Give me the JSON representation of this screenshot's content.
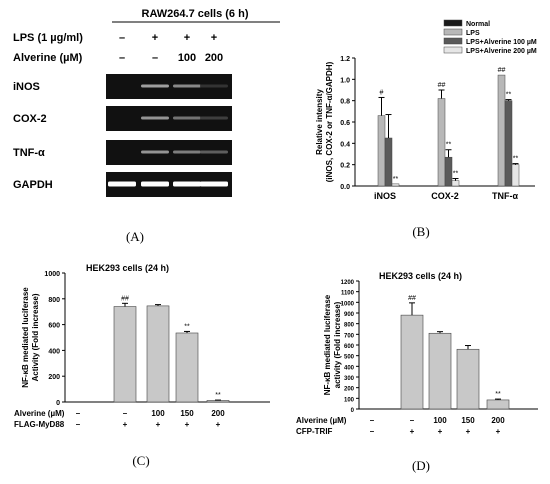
{
  "panels": {
    "A": {
      "letter": "(A)",
      "cell_title": "RAW264.7 cells (6 h)",
      "treatment_rows": [
        {
          "label": "LPS (1 µg/ml)",
          "values": [
            "–",
            "+",
            "+",
            "+"
          ]
        },
        {
          "label": "Alverine (µM)",
          "values": [
            "–",
            "–",
            "100",
            "200"
          ]
        }
      ],
      "bands": [
        {
          "label": "iNOS",
          "intensity": [
            0.0,
            0.55,
            0.45,
            0.05
          ]
        },
        {
          "label": "COX-2",
          "intensity": [
            0.0,
            0.5,
            0.35,
            0.1
          ]
        },
        {
          "label": "TNF-α",
          "intensity": [
            0.0,
            0.5,
            0.4,
            0.25
          ]
        },
        {
          "label": "GAPDH",
          "intensity": [
            1.0,
            1.0,
            1.0,
            1.0
          ]
        }
      ]
    },
    "B": {
      "letter": "(B)"
    },
    "C": {
      "letter": "(C)",
      "treatment_rows": [
        {
          "label": "Alverine (µM)",
          "values": [
            "–",
            "–",
            "100",
            "150",
            "200"
          ]
        },
        {
          "label": "FLAG-MyD88",
          "values": [
            "–",
            "+",
            "+",
            "+",
            "+"
          ]
        }
      ]
    },
    "D": {
      "letter": "(D)",
      "treatment_rows": [
        {
          "label": "Alverine (µM)",
          "values": [
            "–",
            "–",
            "100",
            "150",
            "200"
          ]
        },
        {
          "label": "CFP-TRIF",
          "values": [
            "–",
            "+",
            "+",
            "+",
            "+"
          ]
        }
      ]
    }
  },
  "chart_data": [
    {
      "type": "bar",
      "panel": "B",
      "title": "",
      "xlabel": "",
      "ylabel_lines": [
        "Relative intensity",
        "(iNOS, COX-2 or TNF-α/GAPDH)"
      ],
      "categories": [
        "iNOS",
        "COX-2",
        "TNF-α"
      ],
      "ylim": [
        0.0,
        1.2
      ],
      "yticks": [
        "0.0",
        "0.2",
        "0.4",
        "0.6",
        "0.8",
        "1.0",
        "1.2"
      ],
      "legend_position": "top-right",
      "series": [
        {
          "name": "Normal",
          "color": "#1a1a1a",
          "values": [
            0.0,
            0.0,
            0.0
          ],
          "errors": [
            0,
            0,
            0
          ],
          "annotations": [
            "",
            "",
            ""
          ]
        },
        {
          "name": "LPS",
          "color": "#b8b8b8",
          "values": [
            0.66,
            0.82,
            1.04
          ],
          "errors": [
            0.17,
            0.08,
            0.0
          ],
          "annotations": [
            "#",
            "##",
            "##"
          ]
        },
        {
          "name": "LPS+Alverine 100 µM",
          "color": "#5a5a5a",
          "values": [
            0.45,
            0.27,
            0.8
          ],
          "errors": [
            0.22,
            0.07,
            0.01
          ],
          "annotations": [
            "",
            "**",
            "**"
          ]
        },
        {
          "name": "LPS+Alverine 200 µM",
          "color": "#e6e6e6",
          "values": [
            0.02,
            0.05,
            0.2
          ],
          "errors": [
            0.0,
            0.02,
            0.01
          ],
          "annotations": [
            "**",
            "**",
            "**"
          ]
        }
      ]
    },
    {
      "type": "bar",
      "panel": "C",
      "title": "HEK293 cells (24 h)",
      "ylabel_lines": [
        "NF-κB mediated luciferase",
        "Activity (Fold increase)"
      ],
      "ylim": [
        0,
        1000
      ],
      "yticks": [
        "0",
        "200",
        "400",
        "600",
        "800",
        "1000"
      ],
      "color": "#c8c8c8",
      "values": [
        0,
        740,
        745,
        535,
        12
      ],
      "errors": [
        0,
        25,
        10,
        12,
        3
      ],
      "annotations": [
        "",
        "##",
        "",
        "**",
        "**"
      ]
    },
    {
      "type": "bar",
      "panel": "D",
      "title": "HEK293 cells (24 h)",
      "ylabel_lines": [
        "NF-κB mediated luciferase",
        "activity (Fold increase)"
      ],
      "ylim": [
        0,
        1200
      ],
      "yticks": [
        "0",
        "100",
        "200",
        "300",
        "400",
        "500",
        "600",
        "700",
        "800",
        "900",
        "1000",
        "1100",
        "1200"
      ],
      "color": "#c8c8c8",
      "values": [
        0,
        880,
        710,
        560,
        85
      ],
      "errors": [
        0,
        115,
        15,
        35,
        8
      ],
      "annotations": [
        "",
        "##",
        "",
        "",
        "**"
      ]
    }
  ]
}
